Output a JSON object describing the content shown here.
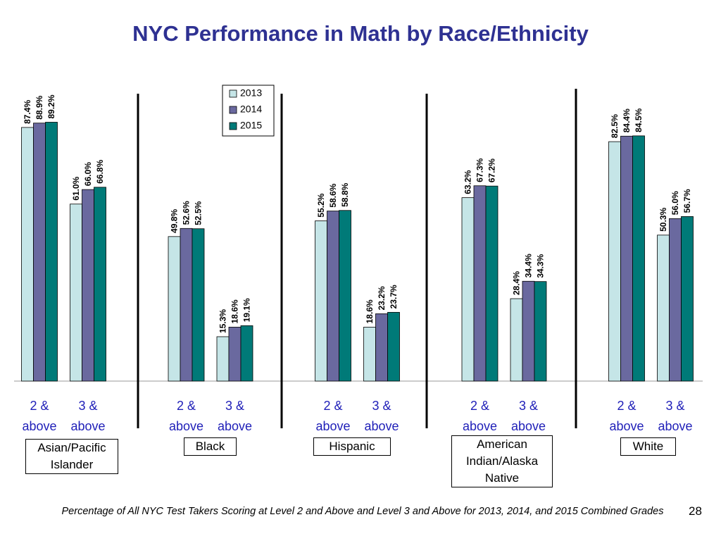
{
  "chart_data": {
    "type": "bar",
    "title": "NYC Performance in Math by Race/Ethnicity",
    "categories": [
      "2 & above",
      "3 & above",
      "2 & above",
      "3 & above",
      "2 & above",
      "3 & above",
      "2 & above",
      "3 & above",
      "2 & above",
      "3 & above"
    ],
    "groups": [
      "Asian/Pacific Islander",
      "Black",
      "Hispanic",
      "American Indian/Alaska Native",
      "White"
    ],
    "series": [
      {
        "name": "2013",
        "color": "#c5e5e7",
        "values": [
          87.4,
          61.0,
          49.8,
          15.3,
          55.2,
          18.6,
          63.2,
          28.4,
          82.5,
          50.3
        ],
        "value_labels": [
          "87.4%",
          "61.0%",
          "49.8%",
          "15.3%",
          "55.2%",
          "18.6%",
          "63.2%",
          "28.4%",
          "82.5%",
          "50.3%"
        ]
      },
      {
        "name": "2014",
        "color": "#6a699f",
        "values": [
          88.9,
          66.0,
          52.6,
          18.6,
          58.6,
          23.2,
          67.3,
          34.4,
          84.4,
          56.0
        ],
        "value_labels": [
          "88.9%",
          "66.0%",
          "52.6%",
          "18.6%",
          "58.6%",
          "23.2%",
          "67.3%",
          "34.4%",
          "84.4%",
          "56.0%"
        ]
      },
      {
        "name": "2015",
        "color": "#007a78",
        "values": [
          89.2,
          66.8,
          52.5,
          19.1,
          58.8,
          23.7,
          67.2,
          34.3,
          84.5,
          56.7
        ],
        "value_labels": [
          "89.2%",
          "66.8%",
          "52.5%",
          "19.1%",
          "58.8%",
          "23.7%",
          "67.2%",
          "34.3%",
          "84.5%",
          "56.7%"
        ]
      }
    ],
    "ylim": [
      0,
      100
    ],
    "footnote": "Percentage of All NYC Test Takers Scoring at Level 2 and Above and Level 3 and Above for 2013, 2014, and 2015 Combined Grades",
    "page_number": "28"
  }
}
